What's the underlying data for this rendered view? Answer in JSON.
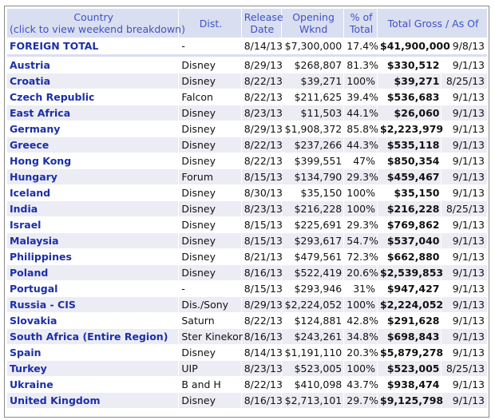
{
  "header": {
    "country_line1": "Country",
    "country_line2": "(click to view weekend breakdown)",
    "dist": "Dist.",
    "release_line1": "Release",
    "release_line2": "Date",
    "opening_line1": "Opening",
    "opening_line2": "Wknd",
    "pct_line1": "% of",
    "pct_line2": "Total",
    "gross_asof": "Total Gross / As Of"
  },
  "total": {
    "country": "FOREIGN TOTAL",
    "dist": "-",
    "release": "8/14/13",
    "opening": "$7,300,000",
    "pct": "17.4%",
    "gross": "$41,900,000",
    "asof": "9/8/13"
  },
  "rows": [
    {
      "country": "Austria",
      "dist": "Disney",
      "release": "8/29/13",
      "opening": "$268,807",
      "pct": "81.3%",
      "gross": "$330,512",
      "asof": "9/1/13"
    },
    {
      "country": "Croatia",
      "dist": "Disney",
      "release": "8/22/13",
      "opening": "$39,271",
      "pct": "100%",
      "gross": "$39,271",
      "asof": "8/25/13"
    },
    {
      "country": "Czech Republic",
      "dist": "Falcon",
      "release": "8/22/13",
      "opening": "$211,625",
      "pct": "39.4%",
      "gross": "$536,683",
      "asof": "9/1/13"
    },
    {
      "country": "East Africa",
      "dist": "Disney",
      "release": "8/23/13",
      "opening": "$11,503",
      "pct": "44.1%",
      "gross": "$26,060",
      "asof": "9/1/13"
    },
    {
      "country": "Germany",
      "dist": "Disney",
      "release": "8/29/13",
      "opening": "$1,908,372",
      "pct": "85.8%",
      "gross": "$2,223,979",
      "asof": "9/1/13"
    },
    {
      "country": "Greece",
      "dist": "Disney",
      "release": "8/22/13",
      "opening": "$237,266",
      "pct": "44.3%",
      "gross": "$535,118",
      "asof": "9/1/13"
    },
    {
      "country": "Hong Kong",
      "dist": "Disney",
      "release": "8/22/13",
      "opening": "$399,551",
      "pct": "47%",
      "gross": "$850,354",
      "asof": "9/1/13"
    },
    {
      "country": "Hungary",
      "dist": "Forum",
      "release": "8/15/13",
      "opening": "$134,790",
      "pct": "29.3%",
      "gross": "$459,467",
      "asof": "9/1/13"
    },
    {
      "country": "Iceland",
      "dist": "Disney",
      "release": "8/30/13",
      "opening": "$35,150",
      "pct": "100%",
      "gross": "$35,150",
      "asof": "9/1/13"
    },
    {
      "country": "India",
      "dist": "Disney",
      "release": "8/23/13",
      "opening": "$216,228",
      "pct": "100%",
      "gross": "$216,228",
      "asof": "8/25/13"
    },
    {
      "country": "Israel",
      "dist": "Disney",
      "release": "8/15/13",
      "opening": "$225,691",
      "pct": "29.3%",
      "gross": "$769,862",
      "asof": "9/1/13"
    },
    {
      "country": "Malaysia",
      "dist": "Disney",
      "release": "8/15/13",
      "opening": "$293,617",
      "pct": "54.7%",
      "gross": "$537,040",
      "asof": "9/1/13"
    },
    {
      "country": "Philippines",
      "dist": "Disney",
      "release": "8/21/13",
      "opening": "$479,561",
      "pct": "72.3%",
      "gross": "$662,880",
      "asof": "9/1/13"
    },
    {
      "country": "Poland",
      "dist": "Disney",
      "release": "8/16/13",
      "opening": "$522,419",
      "pct": "20.6%",
      "gross": "$2,539,853",
      "asof": "9/1/13"
    },
    {
      "country": "Portugal",
      "dist": "-",
      "release": "8/15/13",
      "opening": "$293,946",
      "pct": "31%",
      "gross": "$947,427",
      "asof": "9/1/13"
    },
    {
      "country": "Russia - CIS",
      "dist": "Dis./Sony",
      "release": "8/29/13",
      "opening": "$2,224,052",
      "pct": "100%",
      "gross": "$2,224,052",
      "asof": "9/1/13"
    },
    {
      "country": "Slovakia",
      "dist": "Saturn",
      "release": "8/22/13",
      "opening": "$124,881",
      "pct": "42.8%",
      "gross": "$291,628",
      "asof": "9/1/13"
    },
    {
      "country": "South Africa (Entire Region)",
      "dist": "Ster Kinekor",
      "release": "8/16/13",
      "opening": "$243,261",
      "pct": "34.8%",
      "gross": "$698,843",
      "asof": "9/1/13"
    },
    {
      "country": "Spain",
      "dist": "Disney",
      "release": "8/14/13",
      "opening": "$1,191,110",
      "pct": "20.3%",
      "gross": "$5,879,278",
      "asof": "9/1/13"
    },
    {
      "country": "Turkey",
      "dist": "UIP",
      "release": "8/23/13",
      "opening": "$523,005",
      "pct": "100%",
      "gross": "$523,005",
      "asof": "8/25/13"
    },
    {
      "country": "Ukraine",
      "dist": "B and H",
      "release": "8/22/13",
      "opening": "$410,098",
      "pct": "43.7%",
      "gross": "$938,474",
      "asof": "9/1/13"
    },
    {
      "country": "United Kingdom",
      "dist": "Disney",
      "release": "8/16/13",
      "opening": "$2,713,101",
      "pct": "29.7%",
      "gross": "$9,125,798",
      "asof": "9/1/13"
    }
  ]
}
